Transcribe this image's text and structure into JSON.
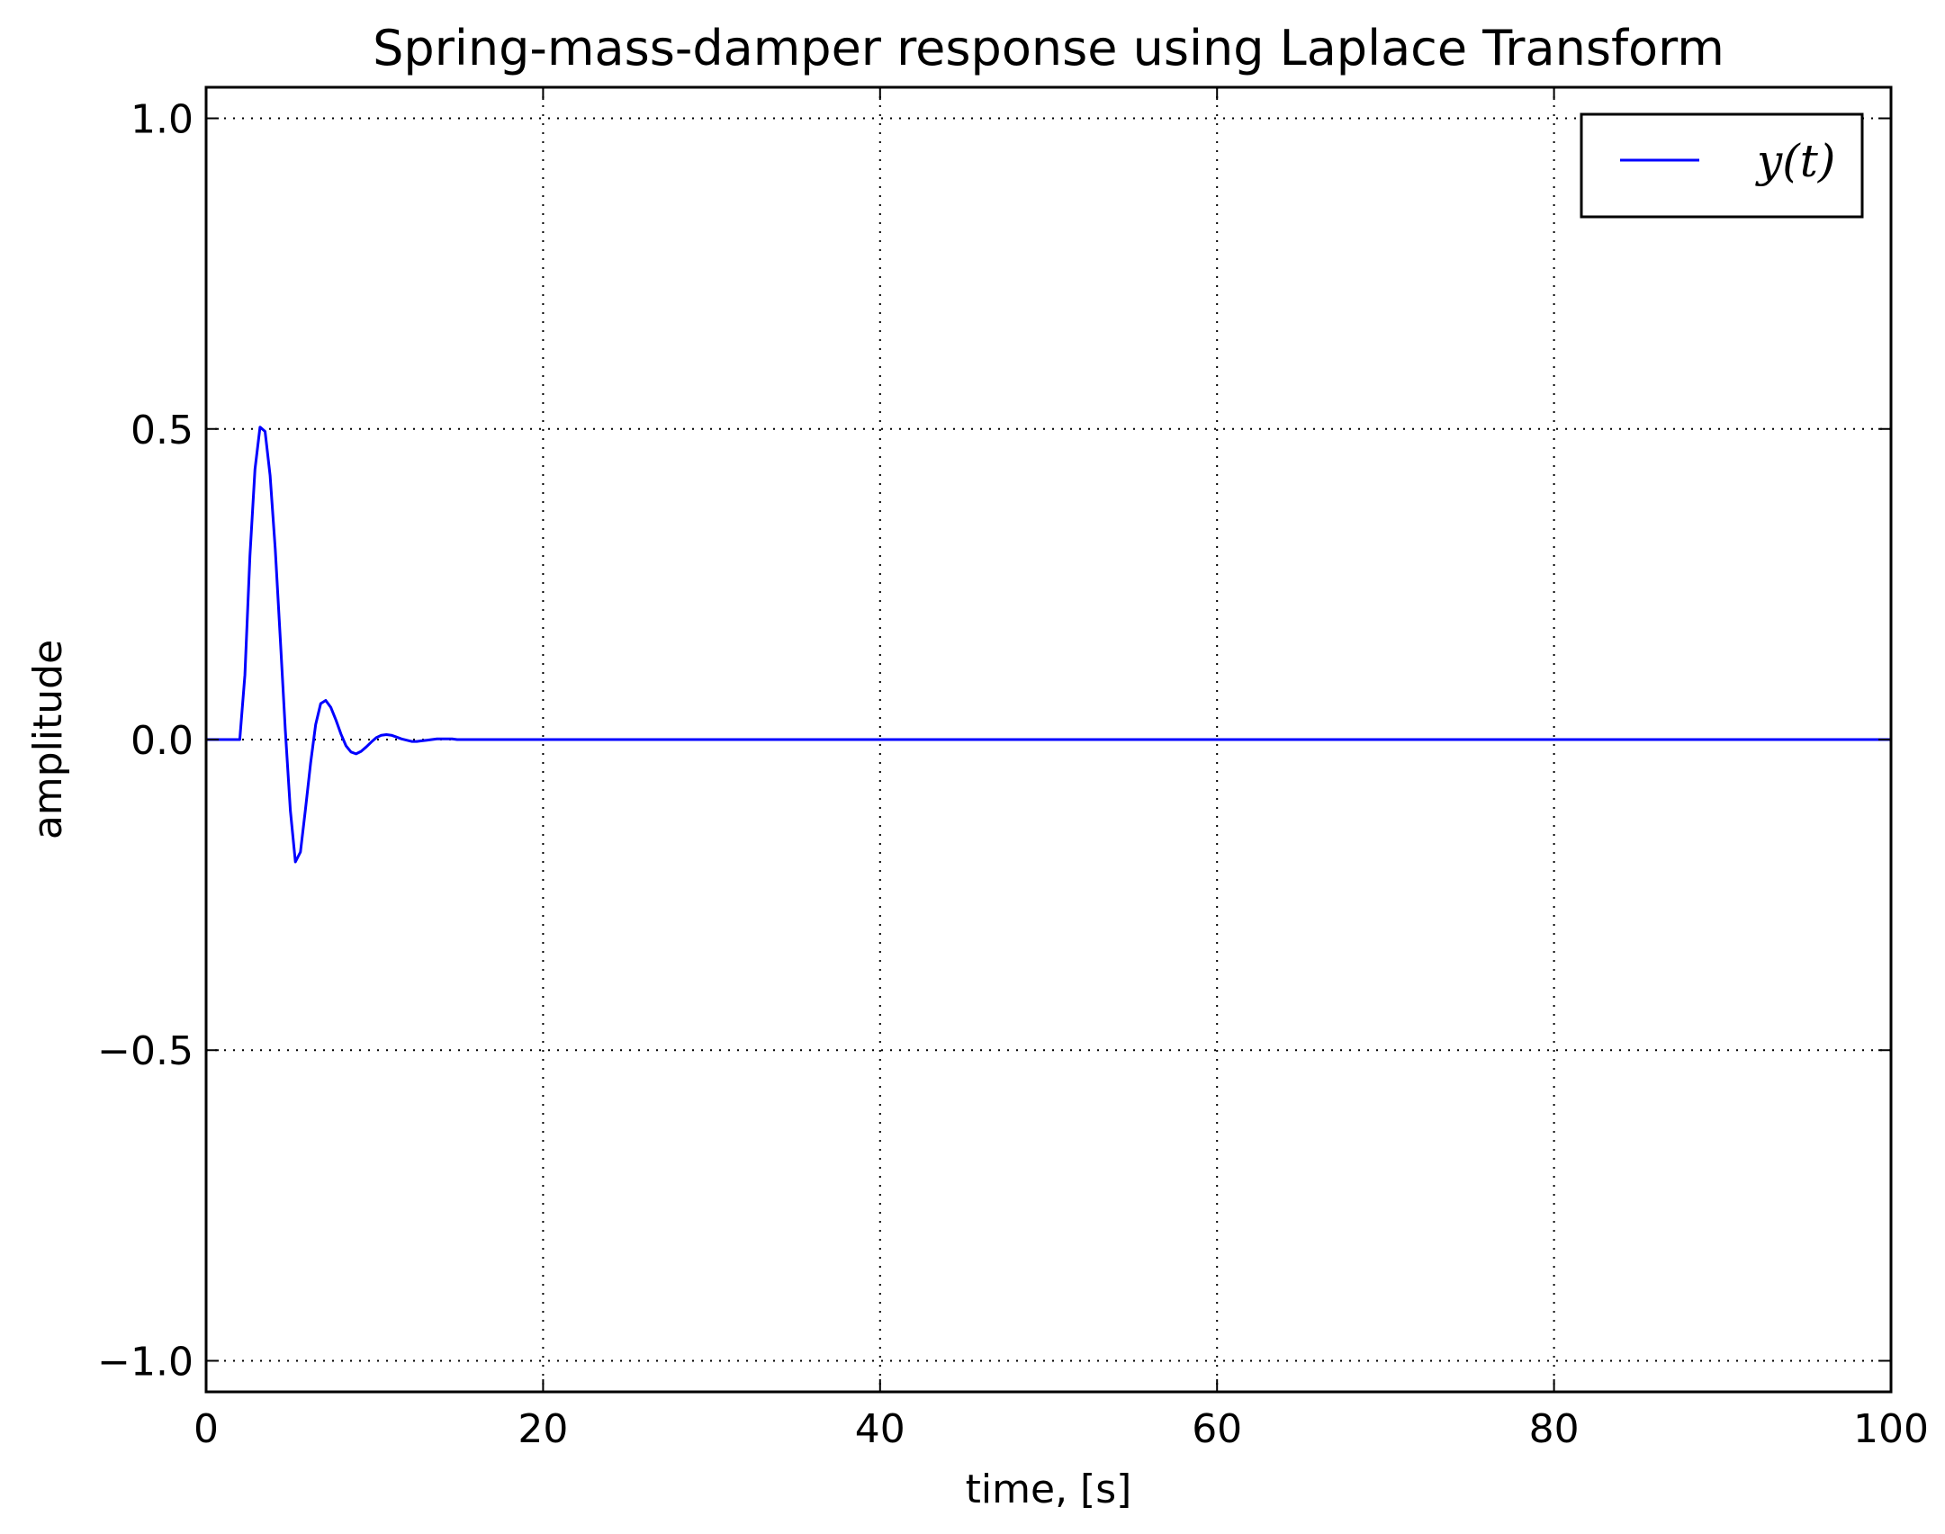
{
  "chart_data": {
    "type": "line",
    "title": "Spring-mass-damper response using Laplace Transform",
    "xlabel": "time, [s]",
    "ylabel": "amplitude",
    "xlim": [
      0,
      100
    ],
    "ylim": [
      -1.05,
      1.05
    ],
    "xticks": [
      0,
      20,
      40,
      60,
      80,
      100
    ],
    "xtick_labels": [
      "0",
      "20",
      "40",
      "60",
      "80",
      "100"
    ],
    "yticks": [
      -1.0,
      -0.5,
      0.0,
      0.5,
      1.0
    ],
    "ytick_labels": [
      "−1.0",
      "−0.5",
      "0.0",
      "0.5",
      "1.0"
    ],
    "grid": true,
    "legend": {
      "position": "top-right",
      "entries": [
        "y(t)"
      ]
    },
    "series": [
      {
        "name": "y(t)",
        "color": "#0000ff",
        "x": [
          0,
          1.5,
          2.0,
          2.3,
          2.6,
          2.9,
          3.2,
          3.5,
          3.8,
          4.1,
          4.4,
          4.7,
          5.0,
          5.3,
          5.6,
          5.9,
          6.2,
          6.5,
          6.8,
          7.1,
          7.4,
          7.7,
          8.0,
          8.3,
          8.6,
          8.9,
          9.2,
          9.5,
          9.8,
          10.1,
          10.4,
          10.7,
          11.0,
          11.3,
          11.6,
          11.9,
          12.2,
          12.5,
          12.8,
          13.1,
          13.4,
          13.7,
          14.0,
          14.3,
          14.6,
          14.9,
          15.2,
          15.5,
          15.8,
          16.1,
          16.4,
          16.7,
          17.0,
          17.3,
          17.6,
          17.9,
          18.2,
          18.5,
          18.8,
          19.1,
          19.4,
          19.7,
          20.0,
          20.6,
          21.2,
          21.8,
          22.4,
          23.0,
          23.6,
          24.2,
          24.8,
          25.4,
          26.0,
          27.0,
          28.0,
          29.0,
          30.0,
          35.0,
          40.0,
          50.0,
          60.0,
          70.0,
          80.0,
          90.0,
          100.0
        ],
        "y": [
          0,
          0,
          0.0,
          0.104,
          0.296,
          0.435,
          0.503,
          0.496,
          0.425,
          0.307,
          0.163,
          0.015,
          -0.114,
          -0.197,
          -0.181,
          -0.112,
          -0.038,
          0.024,
          0.058,
          0.063,
          0.052,
          0.032,
          0.009,
          -0.01,
          -0.02,
          -0.023,
          -0.019,
          -0.012,
          -0.004,
          0.003,
          0.007,
          0.008,
          0.007,
          0.004,
          0.001,
          -0.001,
          -0.003,
          -0.003,
          -0.002,
          -0.001,
          0.0,
          0.001,
          0.001,
          0.001,
          0.001,
          0.0,
          0.0,
          0.0,
          0.0,
          0.0,
          0.0,
          0.0,
          0.0,
          0.0,
          0.0,
          0.0,
          0.0,
          0.0,
          0.0,
          0.0,
          0.0,
          0.0,
          0.0,
          0.0,
          0.0,
          0.0,
          0.0,
          0.0,
          0.0,
          0.0,
          0.0,
          0.0,
          0.0,
          0.0,
          0.0,
          0.0,
          0.0,
          0.0,
          0.0,
          0.0,
          0.0,
          0.0,
          0.0,
          0.0,
          0.0
        ]
      }
    ]
  }
}
